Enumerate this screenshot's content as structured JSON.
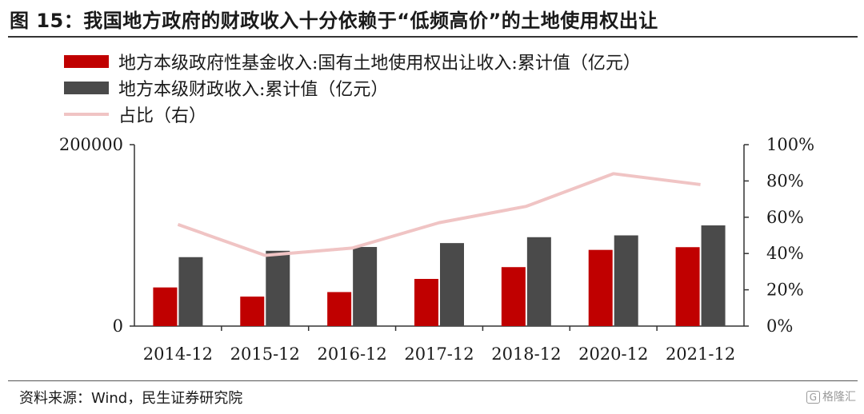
{
  "title": "图 15：我国地方政府的财政收入十分依赖于“低频高价”的土地使用权出让",
  "source": "资料来源：Wind，民生证券研究院",
  "watermark": {
    "mark": "G",
    "text": "格隆汇"
  },
  "colors": {
    "land": "#c00000",
    "fiscal": "#4a4a4a",
    "ratio": "#f0c4c4"
  },
  "chart_data": {
    "type": "bar+line",
    "categories": [
      "2014-12",
      "2015-12",
      "2016-12",
      "2017-12",
      "2018-12",
      "2020-12",
      "2021-12"
    ],
    "series": [
      {
        "name": "地方本级政府性基金收入:国有土地使用权出让收入:累计值（亿元）",
        "kind": "bar",
        "axis": "left",
        "values": [
          42600,
          32500,
          37500,
          52000,
          65000,
          84000,
          87000
        ]
      },
      {
        "name": "地方本级财政收入:累计值（亿元）",
        "kind": "bar",
        "axis": "left",
        "values": [
          76000,
          83000,
          87200,
          91500,
          98000,
          100000,
          111000
        ]
      },
      {
        "name": "占比（右）",
        "kind": "line",
        "axis": "right",
        "values": [
          0.56,
          0.39,
          0.43,
          0.57,
          0.66,
          0.84,
          0.78
        ]
      }
    ],
    "left_axis": {
      "range": [
        0,
        200000
      ],
      "ticks": [
        "0",
        "200000"
      ],
      "tick_values": [
        0,
        200000
      ]
    },
    "right_axis": {
      "range": [
        0,
        1
      ],
      "ticks": [
        "0%",
        "20%",
        "40%",
        "60%",
        "80%",
        "100%"
      ],
      "tick_values": [
        0,
        0.2,
        0.4,
        0.6,
        0.8,
        1.0
      ]
    },
    "legend_position": "top-left"
  }
}
